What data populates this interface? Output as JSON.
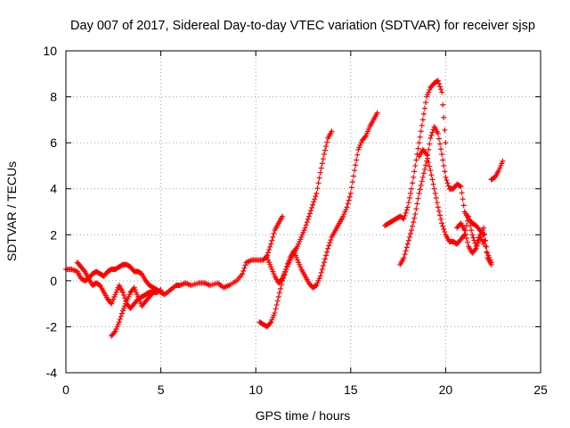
{
  "chart_data": {
    "type": "scatter",
    "title": "Day 007 of 2017, Sidereal Day-to-day VTEC variation (SDTVAR) for receiver sjsp",
    "xlabel": "GPS time / hours",
    "ylabel": "SDTVAR / TECUs",
    "xlim": [
      0,
      25
    ],
    "ylim": [
      -4,
      10
    ],
    "x_ticks": [
      "0",
      "5",
      "10",
      "15",
      "20",
      "25"
    ],
    "y_ticks": [
      "-4",
      "-2",
      "0",
      "2",
      "4",
      "6",
      "8",
      "10"
    ],
    "grid": true,
    "marker": "plus",
    "colors": {
      "series": "#ff0000",
      "grid": "#a0a0a0",
      "axis": "#000000"
    },
    "series": [
      {
        "points": [
          [
            0.0,
            0.5
          ],
          [
            0.3,
            0.5
          ],
          [
            0.6,
            0.4
          ],
          [
            0.8,
            0.1
          ],
          [
            1.0,
            0.0
          ],
          [
            1.2,
            0.1
          ],
          [
            1.4,
            0.3
          ],
          [
            1.6,
            0.4
          ],
          [
            1.8,
            0.3
          ],
          [
            2.0,
            0.2
          ],
          [
            2.2,
            0.4
          ],
          [
            2.4,
            0.5
          ],
          [
            2.6,
            0.5
          ],
          [
            2.8,
            0.6
          ],
          [
            3.0,
            0.7
          ],
          [
            3.2,
            0.7
          ],
          [
            3.4,
            0.6
          ],
          [
            3.6,
            0.4
          ],
          [
            3.8,
            0.4
          ],
          [
            4.0,
            0.3
          ],
          [
            4.2,
            0.0
          ],
          [
            4.4,
            -0.2
          ],
          [
            4.6,
            -0.3
          ],
          [
            4.8,
            -0.4
          ],
          [
            5.0,
            -0.5
          ],
          [
            5.2,
            -0.6
          ],
          [
            5.5,
            -0.4
          ],
          [
            5.8,
            -0.2
          ],
          [
            6.0,
            -0.2
          ],
          [
            6.3,
            -0.1
          ],
          [
            6.6,
            -0.2
          ],
          [
            7.0,
            -0.1
          ],
          [
            7.3,
            -0.1
          ],
          [
            7.6,
            -0.2
          ],
          [
            8.0,
            -0.1
          ],
          [
            8.3,
            -0.3
          ],
          [
            8.6,
            -0.2
          ],
          [
            9.0,
            0.0
          ],
          [
            9.3,
            0.3
          ],
          [
            9.5,
            0.8
          ],
          [
            9.8,
            0.9
          ],
          [
            10.1,
            0.9
          ],
          [
            10.4,
            0.9
          ],
          [
            10.6,
            1.1
          ],
          [
            10.8,
            1.6
          ],
          [
            11.0,
            2.2
          ],
          [
            11.2,
            2.5
          ],
          [
            11.4,
            2.8
          ]
        ]
      },
      {
        "points": [
          [
            0.6,
            0.8
          ],
          [
            0.8,
            0.6
          ],
          [
            1.0,
            0.4
          ],
          [
            1.2,
            0.1
          ],
          [
            1.4,
            -0.2
          ],
          [
            1.6,
            -0.1
          ],
          [
            1.8,
            -0.2
          ],
          [
            2.0,
            -0.5
          ],
          [
            2.2,
            -0.8
          ],
          [
            2.4,
            -1.0
          ],
          [
            2.6,
            -0.6
          ],
          [
            2.8,
            -0.2
          ],
          [
            3.0,
            -0.5
          ],
          [
            3.2,
            -1.0
          ],
          [
            3.4,
            -1.2
          ],
          [
            3.6,
            -1.0
          ],
          [
            3.8,
            -0.8
          ],
          [
            4.0,
            -0.7
          ],
          [
            4.2,
            -0.6
          ],
          [
            4.4,
            -0.5
          ],
          [
            4.6,
            -0.5
          ],
          [
            4.8,
            -0.5
          ],
          [
            5.0,
            -0.4
          ]
        ]
      },
      {
        "points": [
          [
            2.4,
            -2.4
          ],
          [
            2.6,
            -2.2
          ],
          [
            2.8,
            -1.8
          ],
          [
            3.0,
            -1.3
          ],
          [
            3.2,
            -0.9
          ],
          [
            3.4,
            -0.5
          ],
          [
            3.6,
            -0.3
          ],
          [
            3.8,
            -0.7
          ],
          [
            4.0,
            -1.1
          ],
          [
            4.2,
            -0.9
          ],
          [
            4.4,
            -0.7
          ],
          [
            4.6,
            -0.5
          ],
          [
            4.8,
            -0.5
          ]
        ]
      },
      {
        "points": [
          [
            10.2,
            -1.8
          ],
          [
            10.4,
            -1.9
          ],
          [
            10.6,
            -2.0
          ],
          [
            10.8,
            -1.8
          ],
          [
            11.0,
            -1.4
          ],
          [
            11.2,
            -0.7
          ],
          [
            11.4,
            0.0
          ],
          [
            11.6,
            0.5
          ],
          [
            11.8,
            0.9
          ],
          [
            12.0,
            1.2
          ],
          [
            12.2,
            1.5
          ],
          [
            12.4,
            1.9
          ],
          [
            12.6,
            2.3
          ],
          [
            12.8,
            2.8
          ],
          [
            13.0,
            3.3
          ],
          [
            13.2,
            3.8
          ],
          [
            13.4,
            4.7
          ],
          [
            13.6,
            5.5
          ],
          [
            13.8,
            6.2
          ],
          [
            14.0,
            6.5
          ]
        ]
      },
      {
        "points": [
          [
            10.6,
            1.0
          ],
          [
            10.8,
            0.6
          ],
          [
            11.0,
            0.2
          ],
          [
            11.2,
            -0.1
          ],
          [
            11.4,
            0.1
          ],
          [
            11.6,
            0.5
          ],
          [
            11.8,
            1.0
          ],
          [
            12.0,
            1.3
          ],
          [
            12.2,
            0.9
          ],
          [
            12.4,
            0.5
          ],
          [
            12.6,
            0.2
          ],
          [
            12.8,
            -0.1
          ],
          [
            13.0,
            -0.3
          ],
          [
            13.2,
            -0.2
          ],
          [
            13.4,
            0.2
          ],
          [
            13.6,
            0.8
          ],
          [
            13.8,
            1.4
          ],
          [
            14.0,
            1.9
          ],
          [
            14.2,
            2.2
          ],
          [
            14.4,
            2.5
          ],
          [
            14.6,
            2.8
          ],
          [
            14.8,
            3.2
          ],
          [
            15.0,
            3.8
          ],
          [
            15.2,
            4.8
          ],
          [
            15.4,
            5.7
          ],
          [
            15.6,
            6.1
          ],
          [
            15.8,
            6.3
          ],
          [
            16.0,
            6.7
          ],
          [
            16.2,
            7.0
          ],
          [
            16.4,
            7.3
          ]
        ]
      },
      {
        "points": [
          [
            16.8,
            2.4
          ],
          [
            17.0,
            2.5
          ],
          [
            17.2,
            2.6
          ],
          [
            17.4,
            2.7
          ],
          [
            17.6,
            2.8
          ],
          [
            17.8,
            2.7
          ],
          [
            18.0,
            3.2
          ],
          [
            18.2,
            4.0
          ],
          [
            18.4,
            5.0
          ],
          [
            18.6,
            6.0
          ],
          [
            18.8,
            7.0
          ],
          [
            19.0,
            8.0
          ],
          [
            19.2,
            8.4
          ],
          [
            19.4,
            8.6
          ],
          [
            19.6,
            8.7
          ],
          [
            19.8,
            8.2
          ],
          [
            20.0,
            6.0
          ]
        ]
      },
      {
        "points": [
          [
            17.6,
            0.7
          ],
          [
            17.8,
            1.0
          ],
          [
            18.0,
            1.6
          ],
          [
            18.2,
            2.2
          ],
          [
            18.4,
            2.9
          ],
          [
            18.6,
            3.8
          ],
          [
            18.8,
            4.5
          ],
          [
            19.0,
            5.2
          ],
          [
            19.2,
            6.2
          ],
          [
            19.4,
            6.7
          ],
          [
            19.6,
            6.4
          ],
          [
            19.8,
            5.5
          ],
          [
            20.0,
            4.5
          ],
          [
            20.2,
            4.0
          ],
          [
            20.4,
            4.0
          ],
          [
            20.6,
            4.2
          ],
          [
            20.8,
            4.1
          ],
          [
            21.0,
            3.0
          ],
          [
            21.2,
            2.7
          ],
          [
            21.4,
            2.5
          ],
          [
            21.6,
            2.4
          ],
          [
            21.8,
            2.2
          ],
          [
            22.0,
            2.0
          ],
          [
            22.2,
            1.0
          ],
          [
            22.4,
            0.7
          ]
        ]
      },
      {
        "points": [
          [
            18.6,
            5.4
          ],
          [
            18.8,
            5.7
          ],
          [
            19.0,
            5.5
          ],
          [
            19.2,
            4.8
          ],
          [
            19.4,
            4.0
          ],
          [
            19.6,
            3.2
          ],
          [
            19.8,
            2.5
          ],
          [
            20.0,
            2.0
          ],
          [
            20.2,
            1.7
          ],
          [
            20.4,
            1.7
          ],
          [
            20.6,
            1.6
          ],
          [
            20.8,
            1.8
          ],
          [
            21.0,
            2.0
          ],
          [
            21.2,
            2.8
          ],
          [
            21.4,
            2.0
          ],
          [
            21.6,
            1.5
          ],
          [
            21.8,
            2.0
          ],
          [
            22.0,
            1.6
          ]
        ]
      },
      {
        "points": [
          [
            20.6,
            2.3
          ],
          [
            20.8,
            2.5
          ],
          [
            21.0,
            2.2
          ],
          [
            21.2,
            1.5
          ],
          [
            21.4,
            1.2
          ],
          [
            21.6,
            1.4
          ],
          [
            21.8,
            1.9
          ],
          [
            22.0,
            2.3
          ],
          [
            22.2,
            1.2
          ],
          [
            22.4,
            0.8
          ]
        ]
      },
      {
        "points": [
          [
            22.4,
            4.4
          ],
          [
            22.6,
            4.5
          ],
          [
            22.8,
            4.8
          ],
          [
            23.0,
            5.2
          ]
        ]
      }
    ]
  }
}
